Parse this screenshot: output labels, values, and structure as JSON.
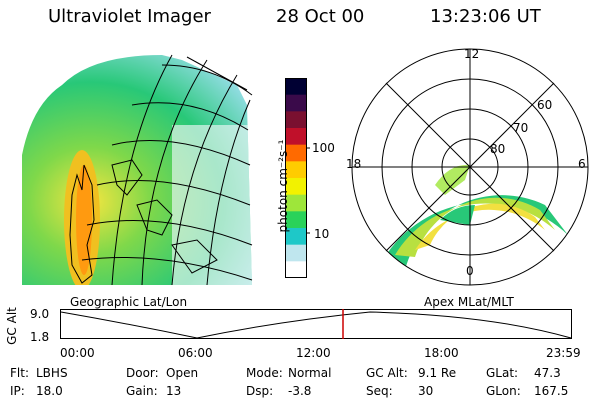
{
  "header": {
    "instrument": "Ultraviolet Imager",
    "date": "28 Oct 00",
    "time": "13:23:06 UT"
  },
  "left_panel": {
    "caption": "Geographic Lat/Lon"
  },
  "right_panel": {
    "caption": "Apex MLat/MLT",
    "mlt_labels": {
      "top": "12",
      "left": "18",
      "right": "6",
      "bottom": "0"
    },
    "lat_labels": [
      "60",
      "70",
      "80"
    ]
  },
  "colorbar": {
    "unit_label": "photon cm⁻²s⁻¹",
    "ticks": [
      "100",
      "10"
    ],
    "colors": [
      "#000033",
      "#3a0a4a",
      "#7a1030",
      "#c0102a",
      "#ff6a00",
      "#ffcc00",
      "#f2f200",
      "#9ee63a",
      "#2ad25a",
      "#1ec8c8",
      "#bfe6ee",
      "#ffffff"
    ]
  },
  "timeline": {
    "y_axis_label": "GC Alt",
    "y_ticks": [
      "9.0",
      "1.8"
    ],
    "x_ticks": [
      "00:00",
      "06:00",
      "12:00",
      "18:00",
      "23:59"
    ],
    "marker_color": "#cc0000"
  },
  "info": {
    "row1": [
      {
        "label": "Flt:",
        "value": "LBHS"
      },
      {
        "label": "Door:",
        "value": "Open"
      },
      {
        "label": "Mode:",
        "value": "Normal"
      },
      {
        "label": "GC Alt:",
        "value": "9.1 Re"
      },
      {
        "label": "GLat:",
        "value": "47.3"
      }
    ],
    "row2": [
      {
        "label": "IP:",
        "value": "18.0"
      },
      {
        "label": "Gain:",
        "value": "13"
      },
      {
        "label": "Dsp:",
        "value": "-3.8"
      },
      {
        "label": "Seq:",
        "value": "30"
      },
      {
        "label": "GLon:",
        "value": "167.5"
      }
    ]
  }
}
